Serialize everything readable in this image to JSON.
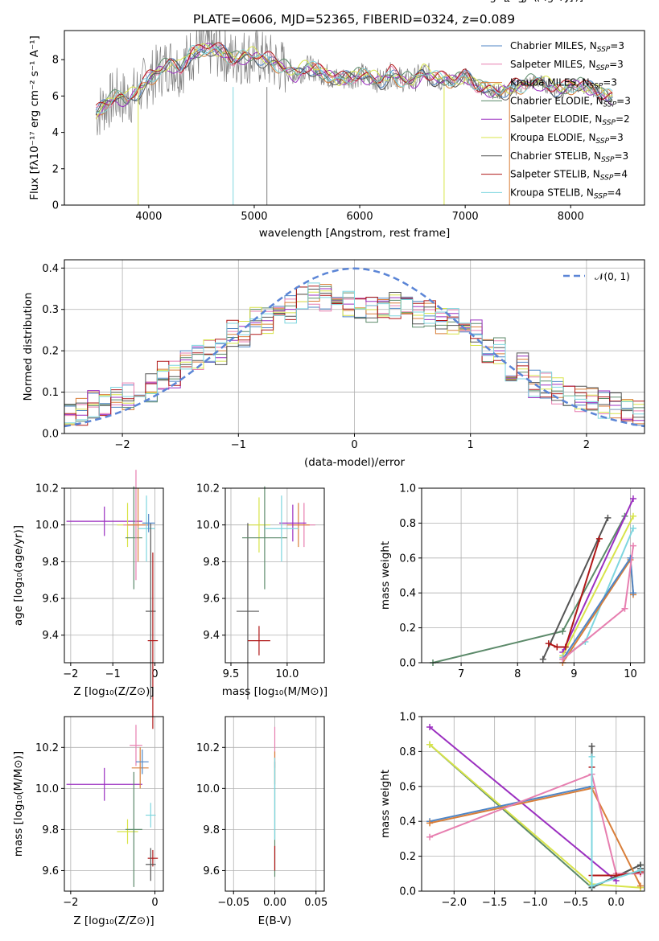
{
  "title": "PLATE=0606, MJD=52365, FIBERID=0324, z=0.089",
  "spectrum": {
    "xlabel": "wavelength [Angstrom, rest frame]",
    "ylabel": "Flux [fλ10⁻¹⁷ erg cm⁻² s⁻¹ A⁻¹]",
    "xticks": [
      "4000",
      "5000",
      "6000",
      "7000",
      "8000"
    ],
    "yticks": [
      "0",
      "2",
      "4",
      "6",
      "8"
    ],
    "legend": [
      {
        "label": "Chabrier MILES, N",
        "sub": "SSP",
        "suffix": "=3",
        "color": "#4f86c6"
      },
      {
        "label": "Salpeter MILES, N",
        "sub": "SSP",
        "suffix": "=3",
        "color": "#e77fb0"
      },
      {
        "label": "Kroupa MILES, N",
        "sub": "SSP",
        "suffix": "=3",
        "color": "#d97f3a"
      },
      {
        "label": "Chabrier ELODIE, N",
        "sub": "SSP",
        "suffix": "=3",
        "color": "#5c8a6a"
      },
      {
        "label": "Salpeter ELODIE, N",
        "sub": "SSP",
        "suffix": "=2",
        "color": "#9b2fc0"
      },
      {
        "label": "Kroupa ELODIE, N",
        "sub": "SSP",
        "suffix": "=3",
        "color": "#d8e44a"
      },
      {
        "label": "Chabrier STELIB, N",
        "sub": "SSP",
        "suffix": "=3",
        "color": "#555555"
      },
      {
        "label": "Salpeter STELIB, N",
        "sub": "SSP",
        "suffix": "=4",
        "color": "#b01818"
      },
      {
        "label": "Kroupa STELIB, N",
        "sub": "SSP",
        "suffix": "=4",
        "color": "#7ed6df"
      }
    ]
  },
  "histogram": {
    "xlabel": "(data-model)/error",
    "ylabel": "Normed distribution",
    "xticks": [
      "−2",
      "−1",
      "0",
      "1",
      "2"
    ],
    "yticks": [
      "0.0",
      "0.1",
      "0.2",
      "0.3",
      "0.4"
    ],
    "legend_label": "𝒩(0, 1)"
  },
  "panels": {
    "age_vs_z": {
      "xlabel": "Z [log₁₀(Z/Z⊙)]",
      "ylabel": "age  [log₁₀(age/yr)]",
      "xticks": [
        "−2",
        "−1",
        "0"
      ],
      "yticks": [
        "9.4",
        "9.6",
        "9.8",
        "10.0",
        "10.2"
      ]
    },
    "age_vs_mass": {
      "xlabel": "mass [log₁₀(M/M⊙)]",
      "xticks": [
        "9.5",
        "10.0"
      ],
      "yticks": [
        "9.4",
        "9.6",
        "9.8",
        "10.0",
        "10.2"
      ]
    },
    "weight_vs_age": {
      "xlabel": "age  [log₁₀(age/yr)]",
      "ylabel": "mass weight",
      "xticks": [
        "7",
        "8",
        "9",
        "10"
      ],
      "yticks": [
        "0.0",
        "0.2",
        "0.4",
        "0.6",
        "0.8",
        "1.0"
      ]
    },
    "mass_vs_z": {
      "xlabel": "Z [log₁₀(Z/Z⊙)]",
      "ylabel": "mass [log₁₀(M/M⊙)]",
      "xticks": [
        "−2",
        "0"
      ],
      "yticks": [
        "9.6",
        "9.8",
        "10.0",
        "10.2"
      ]
    },
    "mass_vs_ebv": {
      "xlabel": "E(B-V)",
      "xticks": [
        "−0.05",
        "0.00",
        "0.05"
      ],
      "yticks": [
        "9.6",
        "9.8",
        "10.0",
        "10.2"
      ]
    },
    "weight_vs_z": {
      "xlabel": "Z [log₁₀(Z/Z⊙)]",
      "ylabel": "mass weight",
      "xticks": [
        "−2.0",
        "−1.5",
        "−1.0",
        "−0.5",
        "0.0"
      ],
      "yticks": [
        "0.0",
        "0.2",
        "0.4",
        "0.6",
        "0.8",
        "1.0"
      ]
    }
  },
  "chart_data": [
    {
      "type": "line",
      "title": "PLATE=0606, MJD=52365, FIBERID=0324, z=0.089",
      "xlabel": "wavelength [Angstrom, rest frame]",
      "ylabel": "Flux [fλ10⁻¹⁷ erg cm⁻² s⁻¹ A⁻¹]",
      "xlim": [
        3200,
        8700
      ],
      "ylim": [
        0,
        9.6
      ],
      "legend_position": "top-right",
      "grid": false,
      "data_x": [
        3500,
        3600,
        3700,
        3800,
        3900,
        4000,
        4100,
        4200,
        4300,
        4400,
        4500,
        4600,
        4700,
        4800,
        4900,
        5000,
        5100,
        5200,
        5300,
        5400,
        5500,
        5600,
        5700,
        5800,
        5900,
        6000,
        6100,
        6200,
        6300,
        6400,
        6500,
        6600,
        6700,
        6800,
        6900,
        7000,
        7100,
        7200,
        7300,
        7400,
        7500,
        7600,
        7700,
        7800,
        7900,
        8000,
        8100,
        8200,
        8300,
        8400
      ],
      "data_y": [
        5.0,
        5.6,
        6.0,
        5.8,
        6.3,
        6.9,
        7.4,
        7.8,
        7.5,
        8.3,
        8.5,
        8.6,
        8.4,
        8.0,
        8.2,
        8.2,
        8.0,
        7.8,
        7.5,
        7.2,
        7.6,
        7.4,
        7.1,
        6.9,
        7.0,
        7.2,
        7.0,
        6.8,
        7.2,
        6.9,
        6.8,
        7.3,
        7.0,
        6.9,
        6.8,
        7.1,
        6.6,
        6.4,
        6.2,
        6.3,
        6.5,
        6.7,
        6.8,
        6.5,
        6.3,
        6.5,
        6.6,
        6.4,
        6.1,
        5.9
      ],
      "series": [
        {
          "name": "Chabrier MILES, NSSP=3",
          "color": "#4f86c6",
          "offset": 0.0
        },
        {
          "name": "Salpeter MILES, NSSP=3",
          "color": "#e77fb0",
          "offset": 0.05
        },
        {
          "name": "Kroupa MILES, NSSP=3",
          "color": "#d97f3a",
          "offset": -0.05
        },
        {
          "name": "Chabrier ELODIE, NSSP=3",
          "color": "#5c8a6a",
          "offset": 0.08
        },
        {
          "name": "Salpeter ELODIE, NSSP=2",
          "color": "#9b2fc0",
          "offset": -0.08
        },
        {
          "name": "Kroupa ELODIE, NSSP=3",
          "color": "#d8e44a",
          "offset": 0.1
        },
        {
          "name": "Chabrier STELIB, NSSP=3",
          "color": "#555555",
          "offset": -0.1
        },
        {
          "name": "Salpeter STELIB, NSSP=4",
          "color": "#b01818",
          "offset": 0.12
        },
        {
          "name": "Kroupa STELIB, NSSP=4",
          "color": "#7ed6df",
          "offset": 0.02
        }
      ]
    },
    {
      "type": "bar",
      "xlabel": "(data-model)/error",
      "ylabel": "Normed distribution",
      "xlim": [
        -2.5,
        2.5
      ],
      "ylim": [
        0,
        0.42
      ],
      "grid": true,
      "bin_edges": [
        -2.5,
        -2.3,
        -2.1,
        -1.9,
        -1.7,
        -1.5,
        -1.3,
        -1.1,
        -0.9,
        -0.7,
        -0.5,
        -0.3,
        -0.1,
        0.1,
        0.3,
        0.5,
        0.7,
        0.9,
        1.1,
        1.3,
        1.5,
        1.7,
        1.9,
        2.1,
        2.3,
        2.5
      ],
      "histogram_values": [
        0.05,
        0.07,
        0.09,
        0.11,
        0.14,
        0.18,
        0.2,
        0.24,
        0.27,
        0.3,
        0.33,
        0.33,
        0.31,
        0.3,
        0.31,
        0.29,
        0.27,
        0.24,
        0.2,
        0.16,
        0.12,
        0.1,
        0.08,
        0.07,
        0.05
      ],
      "reference_curve": {
        "name": "𝒩(0, 1)",
        "color": "#5b85d6",
        "mean": 0,
        "std": 1
      }
    },
    {
      "type": "scatter",
      "name": "age vs Z",
      "xlim": [
        -2.15,
        0.2
      ],
      "ylim": [
        9.25,
        10.2
      ],
      "points": [
        {
          "x": -1.2,
          "y": 10.02,
          "xerr": 0.9,
          "yerr": 0.08,
          "color": "#9b2fc0"
        },
        {
          "x": -0.65,
          "y": 10.0,
          "xerr": 0.25,
          "yerr": 0.12,
          "color": "#d8e44a"
        },
        {
          "x": -0.5,
          "y": 9.93,
          "xerr": 0.2,
          "yerr": 0.28,
          "color": "#5c8a6a"
        },
        {
          "x": -0.45,
          "y": 10.0,
          "xerr": 0.3,
          "yerr": 0.3,
          "color": "#e77fb0"
        },
        {
          "x": -0.4,
          "y": 10.0,
          "xerr": 0.25,
          "yerr": 0.2,
          "color": "#d97f3a"
        },
        {
          "x": -0.2,
          "y": 9.98,
          "xerr": 0.2,
          "yerr": 0.18,
          "color": "#7ed6df"
        },
        {
          "x": -0.1,
          "y": 9.53,
          "xerr": 0.12,
          "yerr": 0.48,
          "color": "#555555"
        },
        {
          "x": -0.05,
          "y": 9.37,
          "xerr": 0.12,
          "yerr": 0.48,
          "color": "#b01818"
        },
        {
          "x": -0.15,
          "y": 10.01,
          "xerr": 0.15,
          "yerr": 0.05,
          "color": "#4f86c6"
        }
      ]
    },
    {
      "type": "scatter",
      "name": "age vs mass",
      "xlim": [
        9.45,
        10.33
      ],
      "ylim": [
        9.25,
        10.2
      ],
      "points": [
        {
          "x": 9.75,
          "y": 10.0,
          "xerr": 0.1,
          "yerr": 0.15,
          "color": "#d8e44a"
        },
        {
          "x": 9.65,
          "y": 9.53,
          "xerr": 0.1,
          "yerr": 0.48,
          "color": "#555555"
        },
        {
          "x": 9.75,
          "y": 9.37,
          "xerr": 0.1,
          "yerr": 0.08,
          "color": "#b01818"
        },
        {
          "x": 9.8,
          "y": 9.93,
          "xerr": 0.2,
          "yerr": 0.28,
          "color": "#5c8a6a"
        },
        {
          "x": 10.15,
          "y": 10.0,
          "xerr": 0.1,
          "yerr": 0.12,
          "color": "#e77fb0"
        },
        {
          "x": 10.1,
          "y": 10.0,
          "xerr": 0.1,
          "yerr": 0.12,
          "color": "#d97f3a"
        },
        {
          "x": 10.05,
          "y": 10.01,
          "xerr": 0.12,
          "yerr": 0.1,
          "color": "#9b2fc0"
        },
        {
          "x": 9.95,
          "y": 9.98,
          "xerr": 0.15,
          "yerr": 0.18,
          "color": "#7ed6df"
        }
      ]
    },
    {
      "type": "line",
      "name": "mass weight vs age",
      "xlim": [
        6.3,
        10.25
      ],
      "ylim": [
        0,
        1
      ],
      "grid": true,
      "series": [
        {
          "color": "#5c8a6a",
          "x": [
            6.5,
            8.8,
            9.9
          ],
          "y": [
            0.0,
            0.18,
            0.84
          ]
        },
        {
          "color": "#555555",
          "x": [
            8.45,
            9.6
          ],
          "y": [
            0.02,
            0.83
          ]
        },
        {
          "color": "#9b2fc0",
          "x": [
            8.8,
            10.05
          ],
          "y": [
            0.06,
            0.94
          ]
        },
        {
          "color": "#d8e44a",
          "x": [
            8.8,
            10.05
          ],
          "y": [
            0.04,
            0.84
          ]
        },
        {
          "color": "#7ed6df",
          "x": [
            8.8,
            9.2,
            10.05
          ],
          "y": [
            0.03,
            0.12,
            0.77
          ]
        },
        {
          "color": "#d97f3a",
          "x": [
            8.8,
            10.0,
            10.05
          ],
          "y": [
            0.0,
            0.59,
            0.39
          ]
        },
        {
          "color": "#4f86c6",
          "x": [
            8.8,
            10.0,
            10.05
          ],
          "y": [
            0.02,
            0.6,
            0.4
          ]
        },
        {
          "color": "#e77fb0",
          "x": [
            8.8,
            9.9,
            10.05
          ],
          "y": [
            0.02,
            0.31,
            0.67
          ]
        },
        {
          "color": "#b01818",
          "x": [
            8.55,
            8.7,
            8.85,
            9.45
          ],
          "y": [
            0.11,
            0.09,
            0.09,
            0.71
          ]
        }
      ]
    },
    {
      "type": "scatter",
      "name": "mass vs Z",
      "xlim": [
        -2.15,
        0.2
      ],
      "ylim": [
        9.5,
        10.35
      ],
      "points": [
        {
          "x": -1.2,
          "y": 10.02,
          "xerr": 0.9,
          "yerr": 0.08,
          "color": "#9b2fc0"
        },
        {
          "x": -0.65,
          "y": 9.79,
          "xerr": 0.25,
          "yerr": 0.06,
          "color": "#d8e44a"
        },
        {
          "x": -0.5,
          "y": 9.8,
          "xerr": 0.2,
          "yerr": 0.28,
          "color": "#5c8a6a"
        },
        {
          "x": -0.45,
          "y": 10.21,
          "xerr": 0.15,
          "yerr": 0.1,
          "color": "#e77fb0"
        },
        {
          "x": -0.35,
          "y": 10.1,
          "xerr": 0.2,
          "yerr": 0.1,
          "color": "#d97f3a"
        },
        {
          "x": -0.3,
          "y": 10.13,
          "xerr": 0.15,
          "yerr": 0.06,
          "color": "#4f86c6"
        },
        {
          "x": -0.1,
          "y": 9.87,
          "xerr": 0.12,
          "yerr": 0.06,
          "color": "#7ed6df"
        },
        {
          "x": -0.05,
          "y": 9.66,
          "xerr": 0.12,
          "yerr": 0.04,
          "color": "#b01818"
        },
        {
          "x": -0.1,
          "y": 9.63,
          "xerr": 0.12,
          "yerr": 0.08,
          "color": "#555555"
        }
      ]
    },
    {
      "type": "scatter",
      "name": "mass vs E(B-V)",
      "xlim": [
        -0.06,
        0.06
      ],
      "ylim": [
        9.5,
        10.35
      ],
      "points": [
        {
          "x": 0.0,
          "y": 10.2,
          "xerr": 0.0,
          "yerr": 0.1,
          "color": "#e77fb0"
        },
        {
          "x": 0.0,
          "y": 10.1,
          "xerr": 0.0,
          "yerr": 0.08,
          "color": "#d97f3a"
        },
        {
          "x": 0.0,
          "y": 9.85,
          "xerr": 0.0,
          "yerr": 0.28,
          "color": "#5c8a6a"
        },
        {
          "x": 0.0,
          "y": 9.66,
          "xerr": 0.0,
          "yerr": 0.06,
          "color": "#b01818"
        },
        {
          "x": 0.0,
          "y": 9.95,
          "xerr": 0.0,
          "yerr": 0.2,
          "color": "#7ed6df"
        }
      ]
    },
    {
      "type": "line",
      "name": "mass weight vs Z",
      "xlim": [
        -2.4,
        0.35
      ],
      "ylim": [
        0,
        1
      ],
      "grid": true,
      "series": [
        {
          "color": "#5c8a6a",
          "x": [
            -2.3,
            -0.3,
            0.3
          ],
          "y": [
            0.84,
            0.02,
            0.15
          ]
        },
        {
          "color": "#9b2fc0",
          "x": [
            -2.3,
            0.0
          ],
          "y": [
            0.94,
            0.06
          ]
        },
        {
          "color": "#d8e44a",
          "x": [
            -2.3,
            -0.3,
            0.3
          ],
          "y": [
            0.84,
            0.04,
            0.02
          ]
        },
        {
          "color": "#555555",
          "x": [
            -0.3,
            -0.3,
            0.3,
            0.3
          ],
          "y": [
            0.83,
            0.02,
            0.15,
            0.13
          ]
        },
        {
          "color": "#4f86c6",
          "x": [
            -2.3,
            -0.3
          ],
          "y": [
            0.4,
            0.6
          ]
        },
        {
          "color": "#d97f3a",
          "x": [
            -2.3,
            -0.3,
            0.3
          ],
          "y": [
            0.39,
            0.59,
            0.03
          ]
        },
        {
          "color": "#e77fb0",
          "x": [
            -2.3,
            -0.3,
            0.0,
            0.3
          ],
          "y": [
            0.31,
            0.67,
            0.1,
            0.1
          ]
        },
        {
          "color": "#b01818",
          "x": [
            -0.3,
            -0.3,
            0.0,
            0.3
          ],
          "y": [
            0.71,
            0.09,
            0.09,
            0.11
          ]
        },
        {
          "color": "#7ed6df",
          "x": [
            -0.3,
            -0.3,
            0.3
          ],
          "y": [
            0.77,
            0.03,
            0.12
          ]
        }
      ]
    }
  ]
}
